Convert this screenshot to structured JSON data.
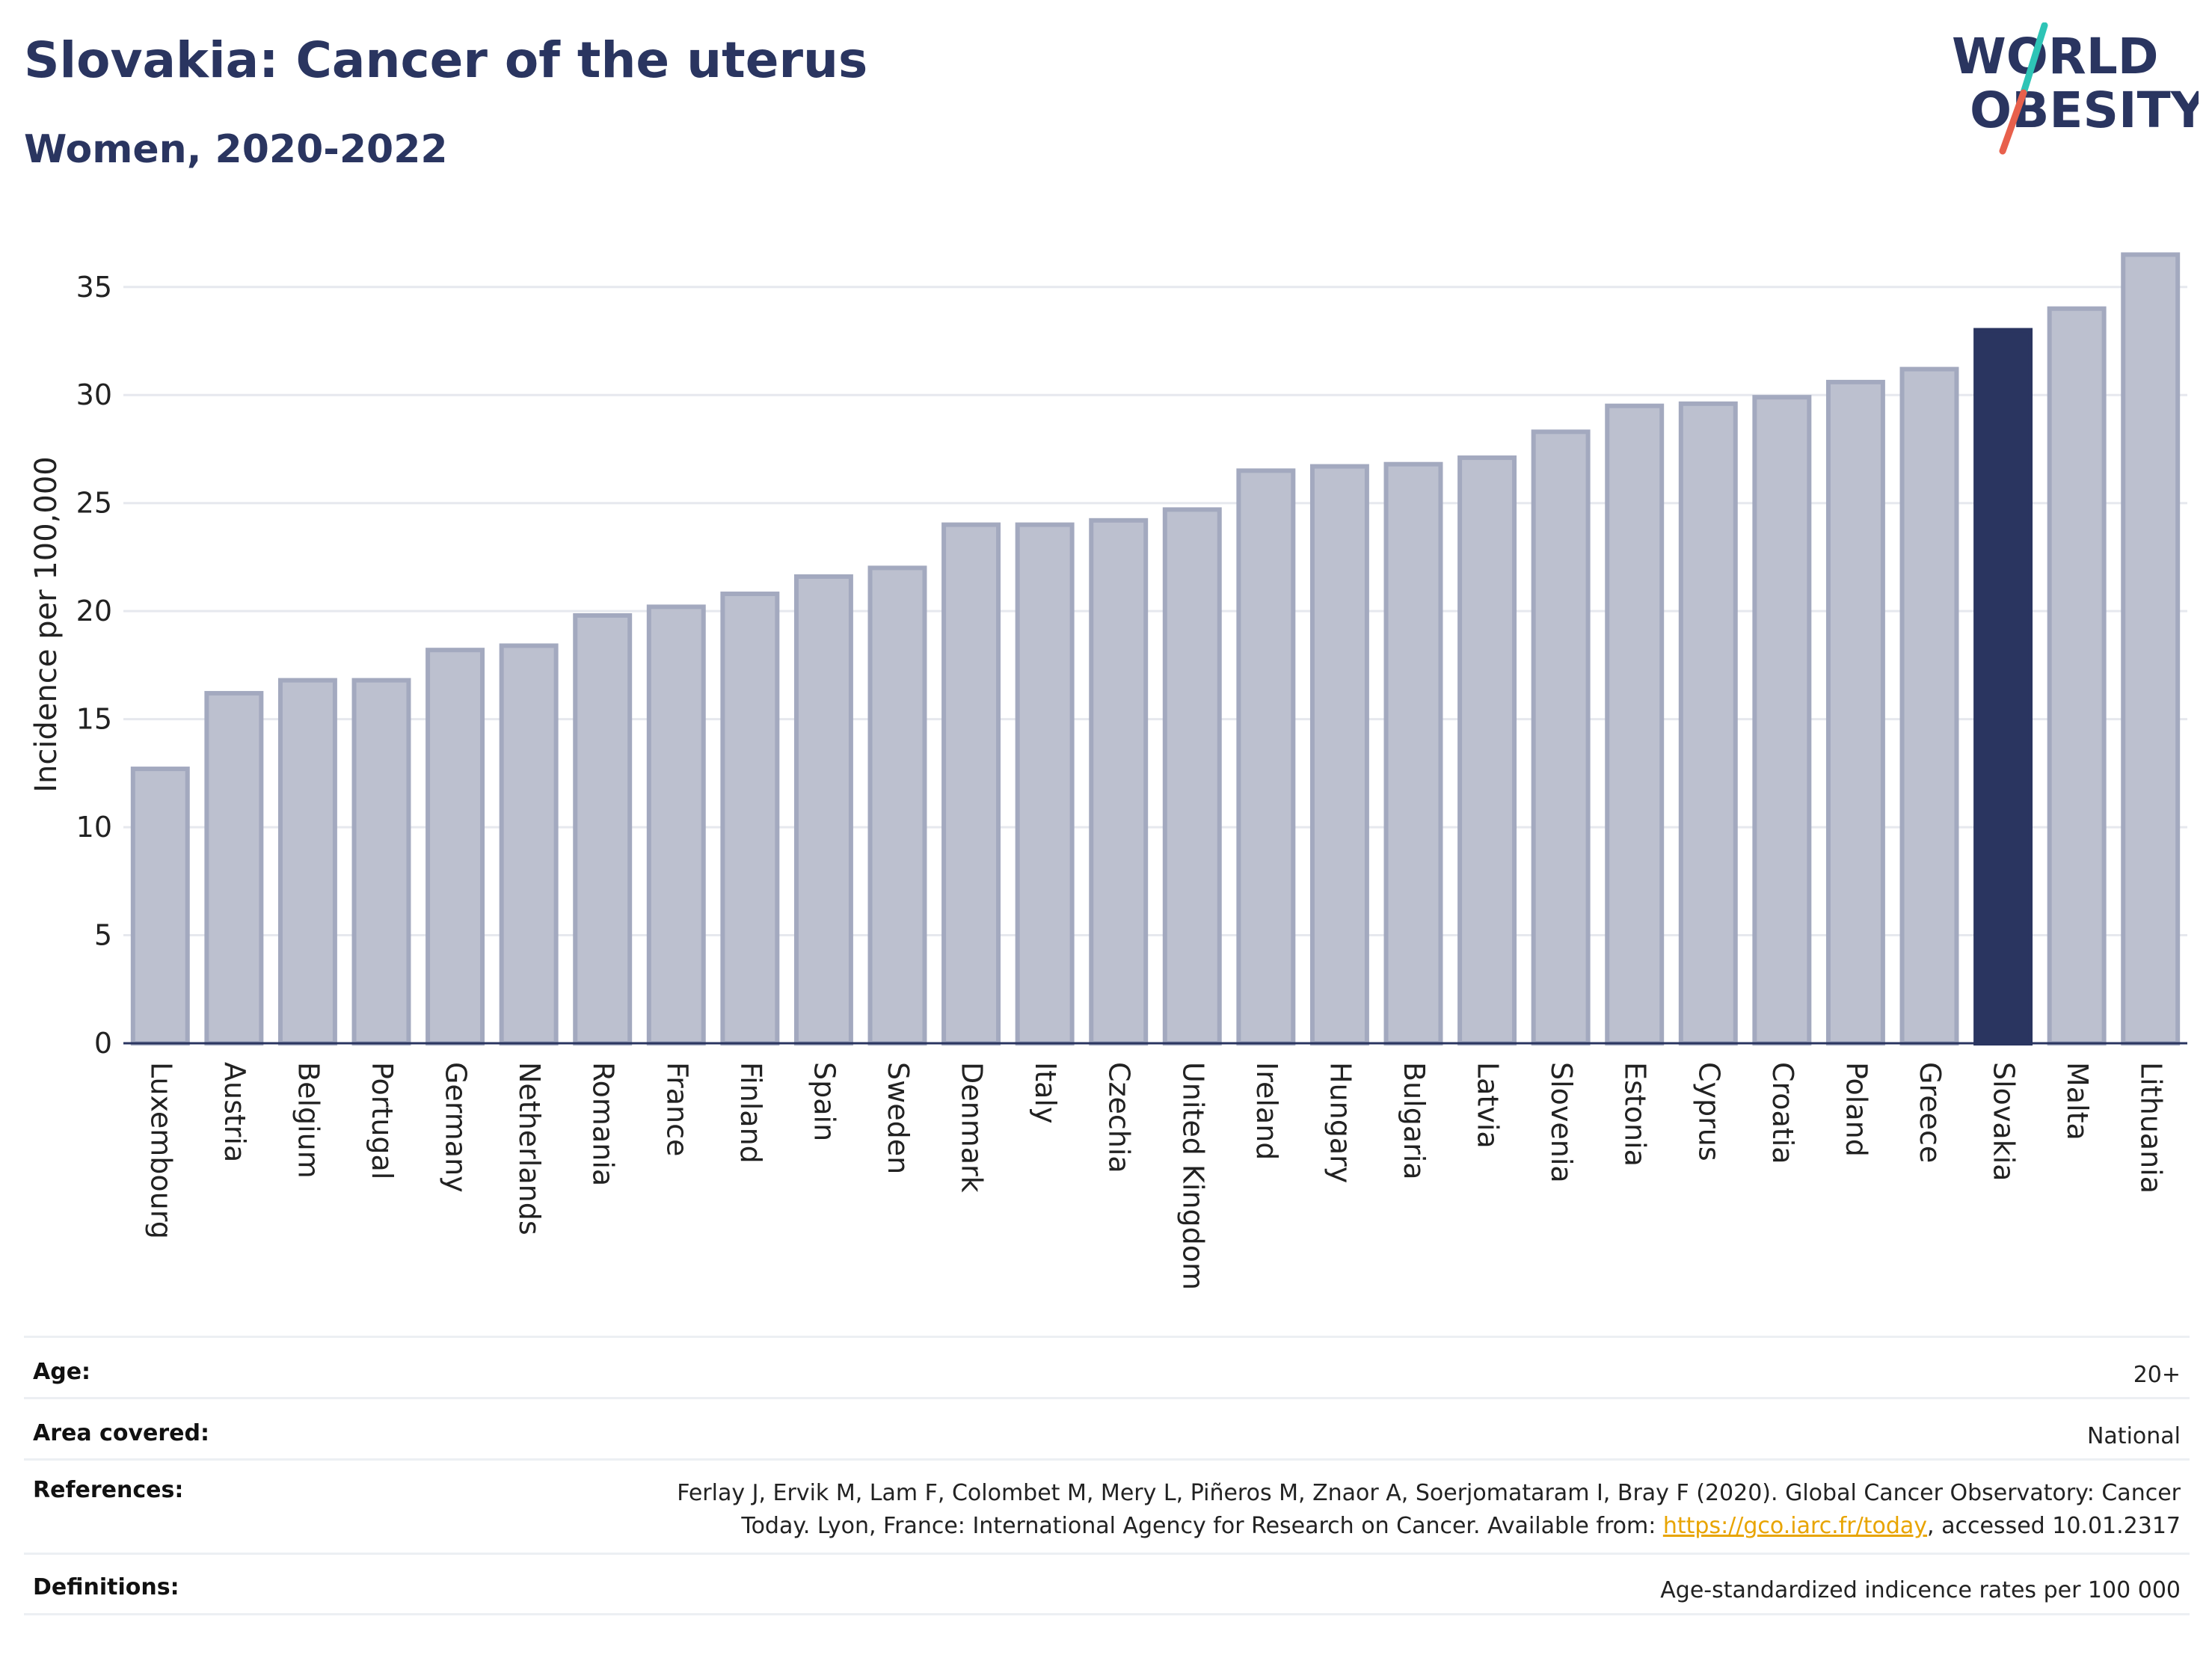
{
  "header": {
    "title": "Slovakia: Cancer of the uterus",
    "subtitle": "Women, 2020-2022"
  },
  "logo": {
    "line1": "WORLD",
    "line2": "OBESITY",
    "colors": {
      "text": "#2a3560",
      "slash_top": "#2ec4b6",
      "slash_bottom": "#e8604c"
    }
  },
  "colors": {
    "bar_default_fill": "#bcc0cf",
    "bar_default_stroke": "#a3a9bf",
    "bar_highlight": "#2a3560",
    "grid": "#e6e8ee",
    "axis_line": "#2a3560"
  },
  "chart_data": {
    "type": "bar",
    "title": "Slovakia: Cancer of the uterus",
    "subtitle": "Women, 2020-2022",
    "ylabel": "Incidence per 100,000",
    "xlabel": "",
    "ylim": [
      0,
      37
    ],
    "yticks": [
      0,
      5,
      10,
      15,
      20,
      25,
      30,
      35
    ],
    "grid": true,
    "highlight": "Slovakia",
    "categories": [
      "Luxembourg",
      "Austria",
      "Belgium",
      "Portugal",
      "Germany",
      "Netherlands",
      "Romania",
      "France",
      "Finland",
      "Spain",
      "Sweden",
      "Denmark",
      "Italy",
      "Czechia",
      "United Kingdom",
      "Ireland",
      "Hungary",
      "Bulgaria",
      "Latvia",
      "Slovenia",
      "Estonia",
      "Cyprus",
      "Croatia",
      "Poland",
      "Greece",
      "Slovakia",
      "Malta",
      "Lithuania"
    ],
    "values": [
      12.7,
      16.2,
      16.8,
      16.8,
      18.2,
      18.4,
      19.8,
      20.2,
      20.8,
      21.6,
      22.0,
      24.0,
      24.0,
      24.2,
      24.7,
      26.5,
      26.7,
      26.8,
      27.1,
      28.3,
      29.5,
      29.6,
      29.9,
      30.6,
      31.2,
      33.0,
      34.0,
      36.5
    ]
  },
  "meta": [
    {
      "label": "Age:",
      "value": "20+"
    },
    {
      "label": "Area covered:",
      "value": "National"
    },
    {
      "label": "References:",
      "value_lines": [
        "Ferlay J, Ervik M, Lam F, Colombet M, Mery L, Piñeros M, Znaor A, Soerjomataram I, Bray F (2020). Global Cancer Observatory: Cancer"
      ],
      "value_line2_prefix": "Today. Lyon, France: International Agency for Research on Cancer. Available from: ",
      "link_text": "https://gco.iarc.fr/today",
      "value_line2_suffix": ", accessed 10.01.2317"
    },
    {
      "label": "Definitions:",
      "value": "Age-standardized indicence rates per 100 000"
    }
  ]
}
